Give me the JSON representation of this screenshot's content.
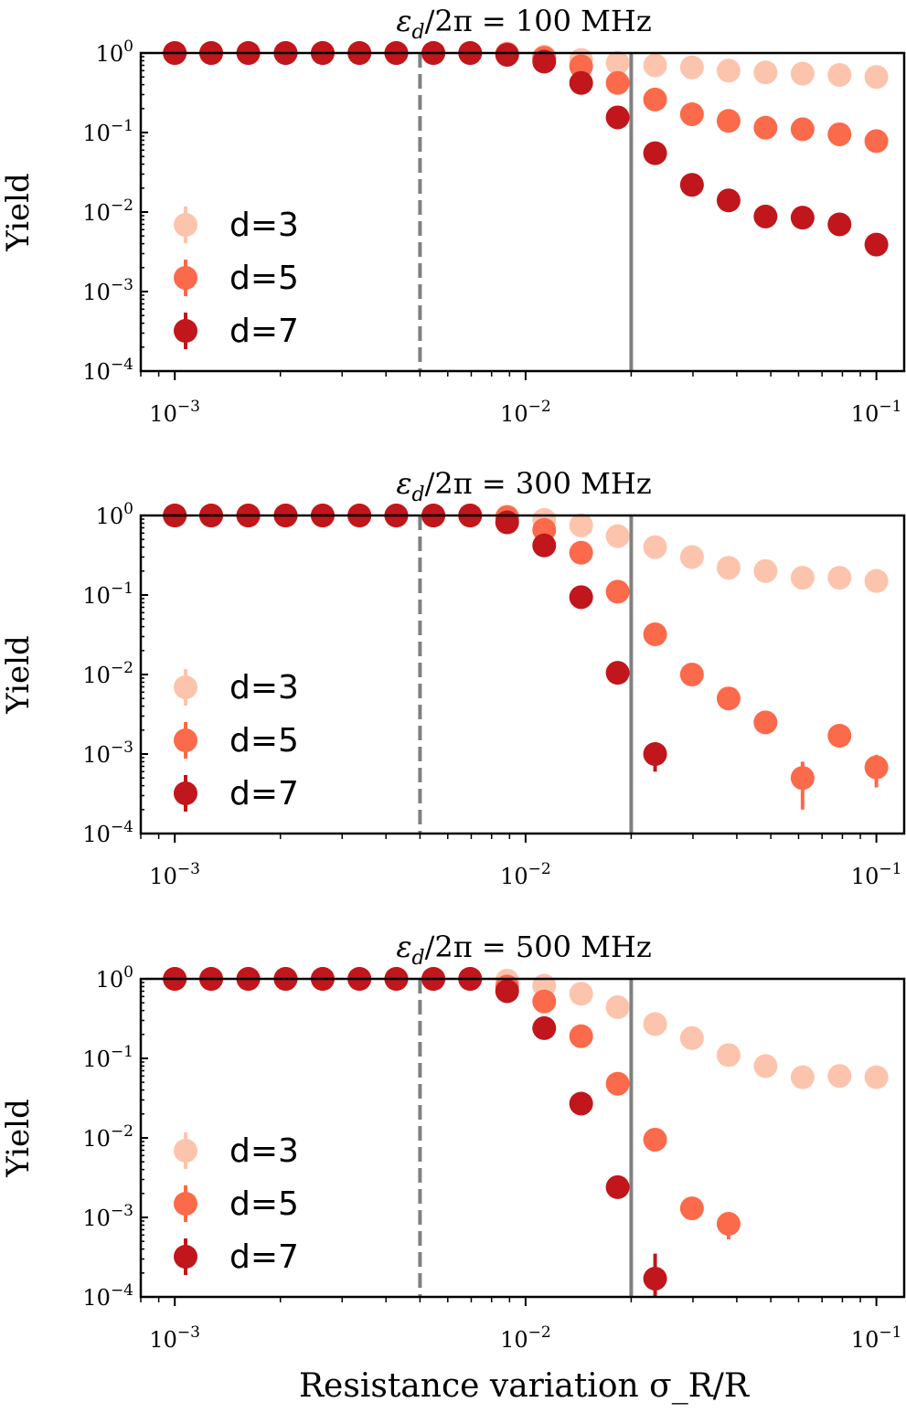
{
  "figure": {
    "xlabel": "Resistance variation σ_R/R"
  },
  "colors": {
    "d3": "#fcc4ad",
    "d5": "#fb6a4a",
    "d7": "#c0161c",
    "dashed_line": "#808080",
    "solid_line": "#808080",
    "axis": "#000000"
  },
  "chart_data": [
    {
      "type": "scatter",
      "title": "ε_d/2π = 100 MHz",
      "ylabel": "Yield",
      "x_scale": "log",
      "y_scale": "log",
      "xlim": [
        0.0008,
        0.12
      ],
      "ylim": [
        0.0001,
        1
      ],
      "x_ticks": [
        "10^-3",
        "10^-2",
        "10^-1"
      ],
      "y_ticks": [
        "10^0",
        "10^-1",
        "10^-2",
        "10^-3",
        "10^-4"
      ],
      "vlines": [
        {
          "x": 0.005,
          "style": "dashed"
        },
        {
          "x": 0.02,
          "style": "solid"
        }
      ],
      "legend": "lower-left",
      "series": [
        {
          "name": "d=3",
          "x": [
            0.001,
            0.00127,
            0.00162,
            0.00207,
            0.00264,
            0.00336,
            0.00428,
            0.00546,
            0.00695,
            0.00886,
            0.0113,
            0.0144,
            0.0183,
            0.0234,
            0.0298,
            0.0379,
            0.0483,
            0.0616,
            0.0785,
            0.1
          ],
          "y": [
            1,
            1,
            1,
            1,
            1,
            1,
            1,
            1,
            1,
            0.98,
            0.9,
            0.82,
            0.75,
            0.7,
            0.66,
            0.6,
            0.57,
            0.55,
            0.53,
            0.5
          ]
        },
        {
          "name": "d=5",
          "x": [
            0.001,
            0.00127,
            0.00162,
            0.00207,
            0.00264,
            0.00336,
            0.00428,
            0.00546,
            0.00695,
            0.00886,
            0.0113,
            0.0144,
            0.0183,
            0.0234,
            0.0298,
            0.0379,
            0.0483,
            0.0616,
            0.0785,
            0.1
          ],
          "y": [
            1,
            1,
            1,
            1,
            1,
            1,
            1,
            1,
            1,
            0.97,
            0.87,
            0.68,
            0.42,
            0.26,
            0.17,
            0.14,
            0.115,
            0.11,
            0.095,
            0.078
          ]
        },
        {
          "name": "d=7",
          "x": [
            0.001,
            0.00127,
            0.00162,
            0.00207,
            0.00264,
            0.00336,
            0.00428,
            0.00546,
            0.00695,
            0.00886,
            0.0113,
            0.0144,
            0.0183,
            0.0234,
            0.0298,
            0.0379,
            0.0483,
            0.0616,
            0.0785,
            0.1
          ],
          "y": [
            1,
            1,
            1,
            1,
            1,
            1,
            1,
            1,
            1,
            0.95,
            0.78,
            0.42,
            0.155,
            0.055,
            0.022,
            0.014,
            0.0088,
            0.0085,
            0.007,
            0.0039
          ]
        }
      ]
    },
    {
      "type": "scatter",
      "title": "ε_d/2π = 300 MHz",
      "ylabel": "Yield",
      "x_scale": "log",
      "y_scale": "log",
      "xlim": [
        0.0008,
        0.12
      ],
      "ylim": [
        0.0001,
        1
      ],
      "x_ticks": [
        "10^-3",
        "10^-2",
        "10^-1"
      ],
      "y_ticks": [
        "10^0",
        "10^-1",
        "10^-2",
        "10^-3",
        "10^-4"
      ],
      "vlines": [
        {
          "x": 0.005,
          "style": "dashed"
        },
        {
          "x": 0.02,
          "style": "solid"
        }
      ],
      "legend": "lower-left",
      "series": [
        {
          "name": "d=3",
          "x": [
            0.001,
            0.00127,
            0.00162,
            0.00207,
            0.00264,
            0.00336,
            0.00428,
            0.00546,
            0.00695,
            0.00886,
            0.0113,
            0.0144,
            0.0183,
            0.0234,
            0.0298,
            0.0379,
            0.0483,
            0.0616,
            0.0785,
            0.1
          ],
          "y": [
            1,
            1,
            1,
            1,
            1,
            1,
            1,
            1,
            1,
            0.97,
            0.88,
            0.75,
            0.55,
            0.4,
            0.3,
            0.22,
            0.2,
            0.165,
            0.165,
            0.15
          ]
        },
        {
          "name": "d=5",
          "x": [
            0.001,
            0.00127,
            0.00162,
            0.00207,
            0.00264,
            0.00336,
            0.00428,
            0.00546,
            0.00695,
            0.00886,
            0.0113,
            0.0144,
            0.0183,
            0.0234,
            0.0298,
            0.0379,
            0.0483,
            0.0616,
            0.0785,
            0.1
          ],
          "y": [
            1,
            1,
            1,
            1,
            1,
            1,
            1,
            1,
            1,
            0.95,
            0.66,
            0.34,
            0.11,
            0.032,
            0.01,
            0.005,
            0.0025,
            0.0005,
            0.0017,
            0.00068
          ],
          "yerr_lo": [
            0,
            0,
            0,
            0,
            0,
            0,
            0,
            0,
            0,
            0,
            0,
            0,
            0,
            0,
            0,
            0,
            0,
            0.0003,
            0,
            0.0003
          ],
          "yerr_hi": [
            0,
            0,
            0,
            0,
            0,
            0,
            0,
            0,
            0,
            0,
            0,
            0,
            0,
            0,
            0,
            0,
            0,
            0.0003,
            0,
            0.0003
          ]
        },
        {
          "name": "d=7",
          "x": [
            0.001,
            0.00127,
            0.00162,
            0.00207,
            0.00264,
            0.00336,
            0.00428,
            0.00546,
            0.00695,
            0.00886,
            0.0113,
            0.0144,
            0.0183,
            0.0234
          ],
          "y": [
            1,
            1,
            1,
            1,
            1,
            1,
            1,
            1,
            1,
            0.82,
            0.42,
            0.094,
            0.0105,
            0.001
          ],
          "yerr_lo": [
            0,
            0,
            0,
            0,
            0,
            0,
            0,
            0,
            0,
            0,
            0,
            0,
            0,
            0.0004
          ],
          "yerr_hi": [
            0,
            0,
            0,
            0,
            0,
            0,
            0,
            0,
            0,
            0,
            0,
            0,
            0,
            0.0003
          ]
        }
      ]
    },
    {
      "type": "scatter",
      "title": "ε_d/2π = 500 MHz",
      "ylabel": "Yield",
      "x_scale": "log",
      "y_scale": "log",
      "xlim": [
        0.0008,
        0.12
      ],
      "ylim": [
        0.0001,
        1
      ],
      "x_ticks": [
        "10^-3",
        "10^-2",
        "10^-1"
      ],
      "y_ticks": [
        "10^0",
        "10^-1",
        "10^-2",
        "10^-3",
        "10^-4"
      ],
      "vlines": [
        {
          "x": 0.005,
          "style": "dashed"
        },
        {
          "x": 0.02,
          "style": "solid"
        }
      ],
      "legend": "lower-left",
      "series": [
        {
          "name": "d=3",
          "x": [
            0.001,
            0.00127,
            0.00162,
            0.00207,
            0.00264,
            0.00336,
            0.00428,
            0.00546,
            0.00695,
            0.00886,
            0.0113,
            0.0144,
            0.0183,
            0.0234,
            0.0298,
            0.0379,
            0.0483,
            0.0616,
            0.0785,
            0.1
          ],
          "y": [
            1,
            1,
            1,
            1,
            1,
            1,
            1,
            1,
            1,
            0.95,
            0.82,
            0.65,
            0.44,
            0.27,
            0.18,
            0.11,
            0.08,
            0.058,
            0.06,
            0.058
          ]
        },
        {
          "name": "d=5",
          "x": [
            0.001,
            0.00127,
            0.00162,
            0.00207,
            0.00264,
            0.00336,
            0.00428,
            0.00546,
            0.00695,
            0.00886,
            0.0113,
            0.0144,
            0.0183,
            0.0234,
            0.0298,
            0.0379
          ],
          "y": [
            1,
            1,
            1,
            1,
            1,
            1,
            1,
            1,
            1,
            0.8,
            0.52,
            0.19,
            0.048,
            0.0095,
            0.0013,
            0.00083
          ],
          "yerr_lo": [
            0,
            0,
            0,
            0,
            0,
            0,
            0,
            0,
            0,
            0,
            0,
            0,
            0,
            0,
            0.0003,
            0.0003
          ],
          "yerr_hi": [
            0,
            0,
            0,
            0,
            0,
            0,
            0,
            0,
            0,
            0,
            0,
            0,
            0,
            0,
            0.0002,
            0.0002
          ]
        },
        {
          "name": "d=7",
          "x": [
            0.001,
            0.00127,
            0.00162,
            0.00207,
            0.00264,
            0.00336,
            0.00428,
            0.00546,
            0.00695,
            0.00886,
            0.0113,
            0.0144,
            0.0183,
            0.0234
          ],
          "y": [
            1,
            1,
            1,
            1,
            1,
            1,
            1,
            1,
            1,
            0.7,
            0.24,
            0.027,
            0.0024,
            0.00017
          ],
          "yerr_lo": [
            0,
            0,
            0,
            0,
            0,
            0,
            0,
            0,
            0,
            0,
            0,
            0,
            0,
            7e-05
          ],
          "yerr_hi": [
            0,
            0,
            0,
            0,
            0,
            0,
            0,
            0,
            0,
            0,
            0,
            0,
            0,
            0.00018
          ]
        }
      ]
    }
  ]
}
